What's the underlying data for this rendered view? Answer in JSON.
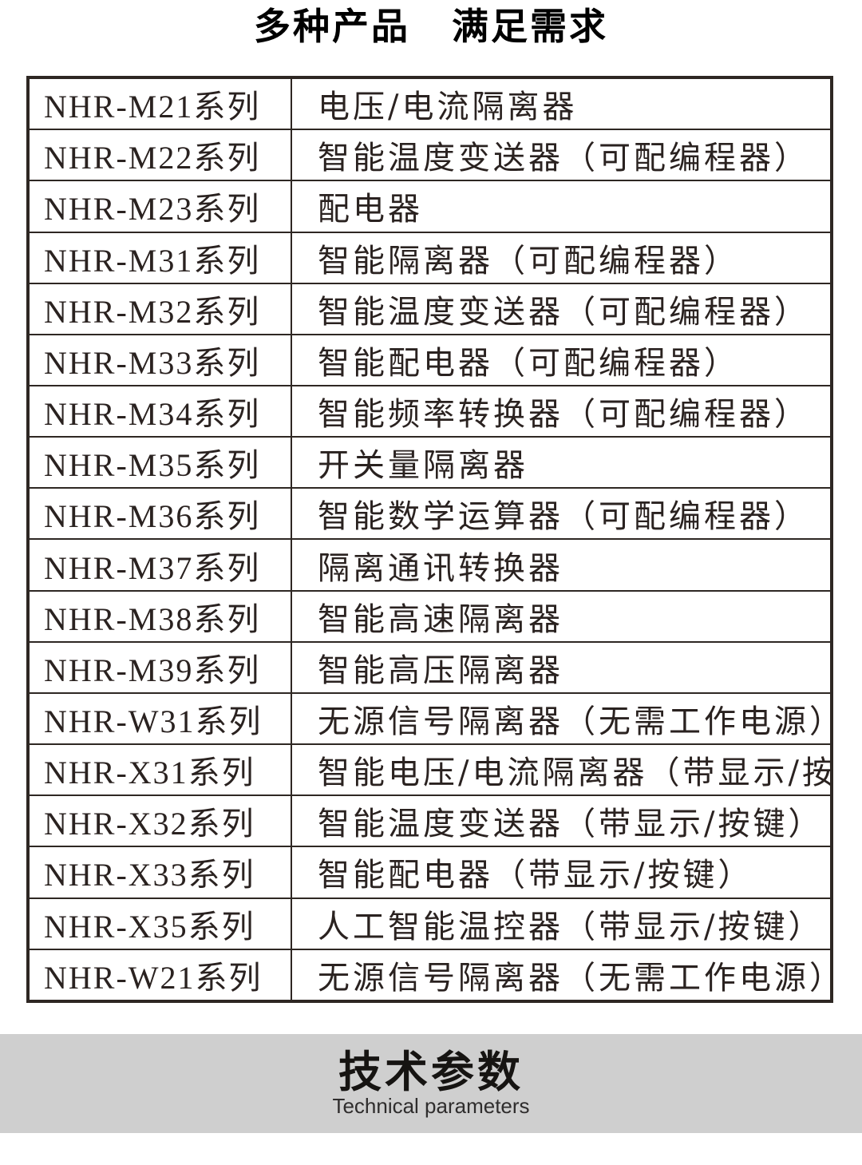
{
  "title": {
    "part1": "多种产品",
    "part2": "满足需求"
  },
  "table": {
    "rows": [
      {
        "series": "NHR-M21系列",
        "desc": "电压/电流隔离器"
      },
      {
        "series": "NHR-M22系列",
        "desc": "智能温度变送器（可配编程器）"
      },
      {
        "series": "NHR-M23系列",
        "desc": "配电器"
      },
      {
        "series": "NHR-M31系列",
        "desc": "智能隔离器（可配编程器）"
      },
      {
        "series": "NHR-M32系列",
        "desc": "智能温度变送器（可配编程器）"
      },
      {
        "series": "NHR-M33系列",
        "desc": "智能配电器（可配编程器）"
      },
      {
        "series": "NHR-M34系列",
        "desc": "智能频率转换器（可配编程器）"
      },
      {
        "series": "NHR-M35系列",
        "desc": "开关量隔离器"
      },
      {
        "series": "NHR-M36系列",
        "desc": "智能数学运算器（可配编程器）"
      },
      {
        "series": "NHR-M37系列",
        "desc": "隔离通讯转换器"
      },
      {
        "series": "NHR-M38系列",
        "desc": "智能高速隔离器"
      },
      {
        "series": "NHR-M39系列",
        "desc": "智能高压隔离器"
      },
      {
        "series": "NHR-W31系列",
        "desc": "无源信号隔离器（无需工作电源）"
      },
      {
        "series": "NHR-X31系列",
        "desc": "智能电压/电流隔离器（带显示/按键）"
      },
      {
        "series": "NHR-X32系列",
        "desc": "智能温度变送器（带显示/按键）"
      },
      {
        "series": "NHR-X33系列",
        "desc": "智能配电器（带显示/按键）"
      },
      {
        "series": "NHR-X35系列",
        "desc": "人工智能温控器（带显示/按键）"
      },
      {
        "series": "NHR-W21系列",
        "desc": "无源信号隔离器（无需工作电源）"
      }
    ]
  },
  "tech_section": {
    "heading": "技术参数",
    "subheading": "Technical parameters"
  },
  "colors": {
    "border": "#2e2723",
    "band_bg": "#cfcfcf",
    "title_color": "#000000"
  }
}
